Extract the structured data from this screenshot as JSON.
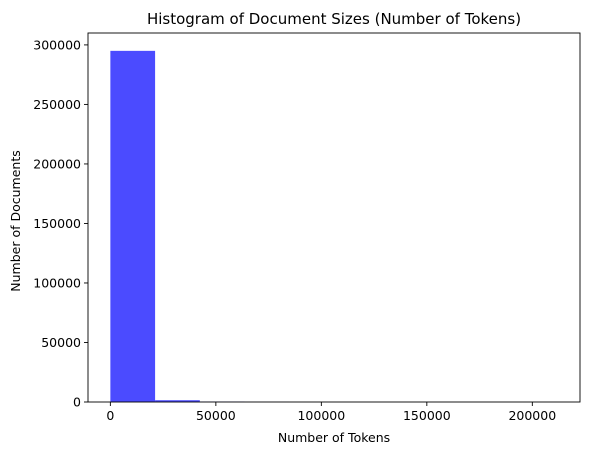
{
  "chart_data": {
    "type": "bar",
    "title": "Histogram of Document Sizes (Number of Tokens)",
    "xlabel": "Number of Tokens",
    "ylabel": "Number of Documents",
    "xlim": [
      -10600,
      222600
    ],
    "ylim": [
      0,
      310000
    ],
    "xticks": [
      0,
      50000,
      100000,
      150000,
      200000
    ],
    "yticks": [
      0,
      50000,
      100000,
      150000,
      200000,
      250000,
      300000
    ],
    "bar_color": "#4b4bff",
    "bin_edges": [
      0,
      21200,
      42400,
      63600,
      84800,
      106000,
      127200,
      148400,
      169600,
      190800,
      212000
    ],
    "counts": [
      295000,
      1500,
      400,
      80,
      20,
      8,
      4,
      2,
      1,
      1
    ],
    "grid": false,
    "legend": "none"
  }
}
